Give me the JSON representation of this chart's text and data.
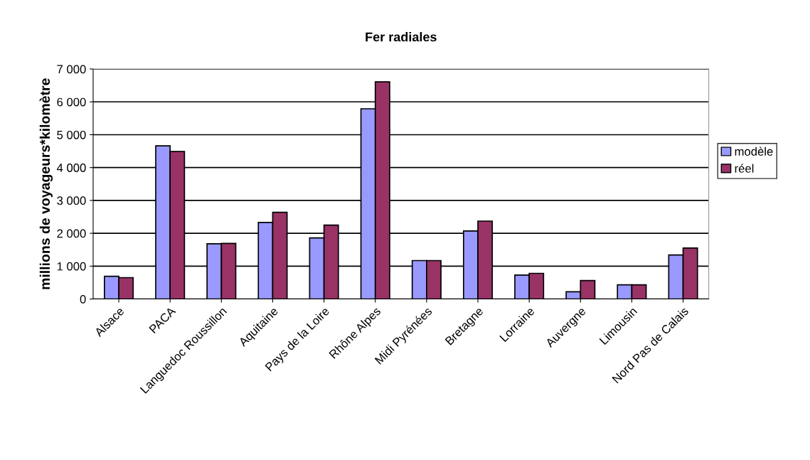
{
  "chart_data": {
    "type": "bar",
    "title": "Fer radiales",
    "ylabel": "millions de voyageurs*kilomètre",
    "categories": [
      "Alsace",
      "PACA",
      "Languedoc Roussillon",
      "Aquitaine",
      "Pays de la Loire",
      "Rhône Alpes",
      "Midi Pyrénées",
      "Bretagne",
      "Lorraine",
      "Auvergne",
      "Limousin",
      "Nord Pas de Calais"
    ],
    "series": [
      {
        "name": "modèle",
        "color": "#9999ff",
        "values": [
          690,
          4660,
          1680,
          2330,
          1860,
          5790,
          1170,
          2070,
          730,
          220,
          430,
          1340
        ]
      },
      {
        "name": "réel",
        "color": "#993366",
        "values": [
          650,
          4490,
          1690,
          2640,
          2250,
          6610,
          1170,
          2370,
          780,
          560,
          430,
          1550
        ]
      }
    ],
    "ylim": [
      0,
      7000
    ],
    "yticks": [
      0,
      {
        "value": 1000,
        "label": "1 000"
      },
      {
        "value": 2000,
        "label": "2 000"
      },
      {
        "value": 3000,
        "label": "3 000"
      },
      {
        "value": 4000,
        "label": "4 000"
      },
      {
        "value": 5000,
        "label": "5 000"
      },
      {
        "value": 6000,
        "label": "6 000"
      },
      {
        "value": 7000,
        "label": "7 000"
      }
    ],
    "grid": "y",
    "legend": "right"
  }
}
